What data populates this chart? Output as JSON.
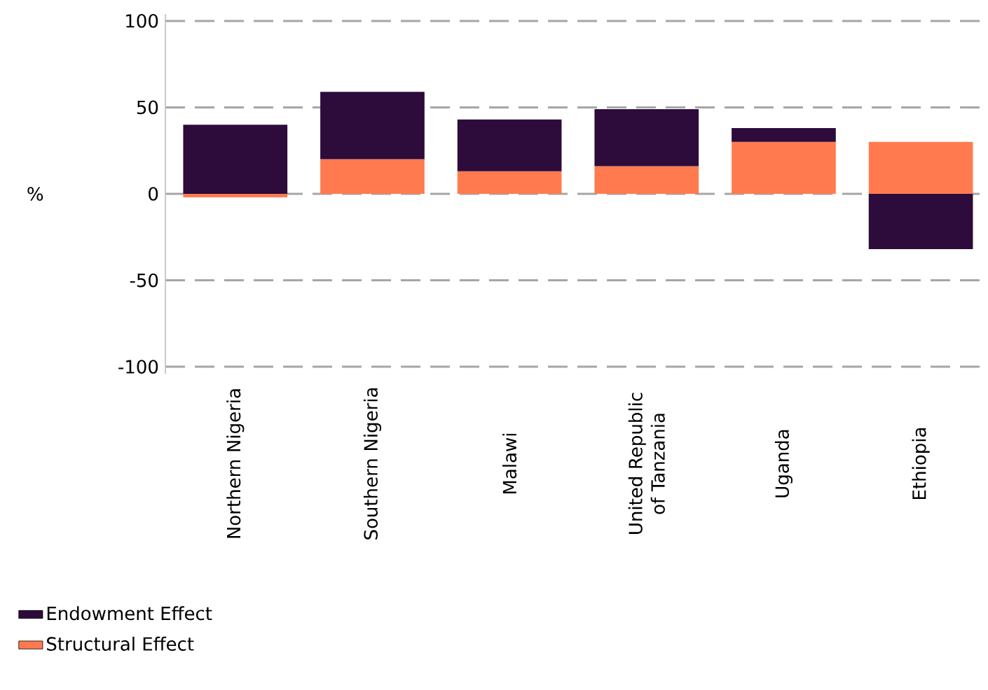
{
  "chart_data": {
    "type": "bar",
    "stacked": true,
    "ylabel": "%",
    "categories": [
      "Northern Nigeria",
      "Southern Nigeria",
      "Malawi",
      "United Republic of Tanzania",
      "Uganda",
      "Ethiopia"
    ],
    "series": [
      {
        "name": "Structural Effect",
        "color": "#ff7b4f",
        "values": [
          -2,
          20,
          13,
          16,
          30,
          30
        ]
      },
      {
        "name": "Endowment Effect",
        "color": "#2d0b3a",
        "values": [
          40,
          39,
          30,
          33,
          8,
          -32
        ]
      }
    ],
    "ylim": [
      -100,
      100
    ],
    "yticks": [
      -100,
      -50,
      0,
      50,
      100
    ],
    "grid": "y",
    "legend": "bottom"
  }
}
